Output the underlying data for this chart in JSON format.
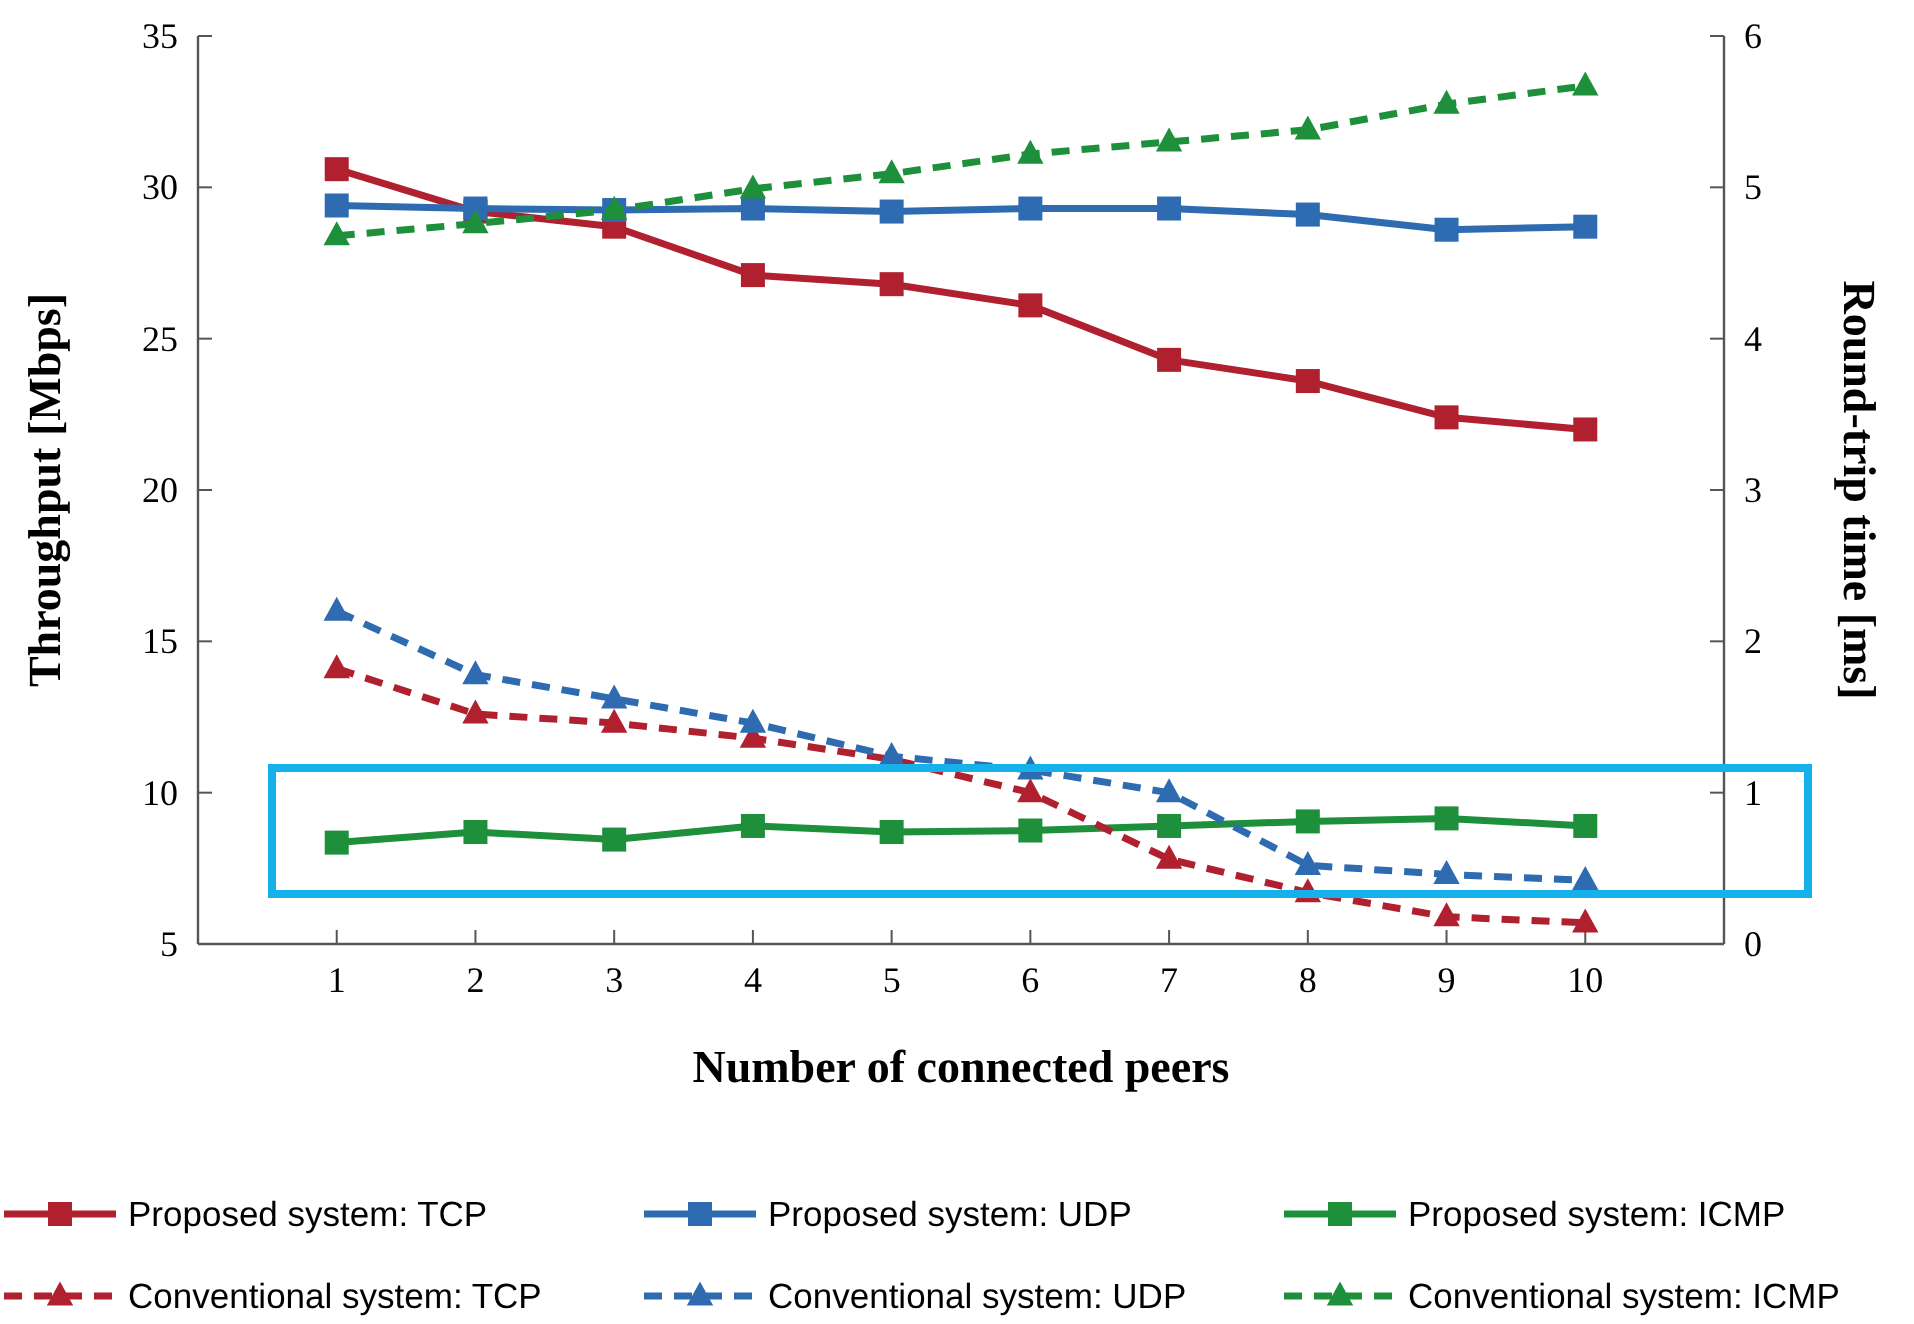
{
  "chart_data": {
    "type": "line",
    "xlabel": "Number of connected peers",
    "ylabel": "Throughput [Mbps]",
    "y2label": "Round-trip time [ms]",
    "x": [
      1,
      2,
      3,
      4,
      5,
      6,
      7,
      8,
      9,
      10
    ],
    "xlim": [
      0,
      11
    ],
    "xticks": [
      1,
      2,
      3,
      4,
      5,
      6,
      7,
      8,
      9,
      10
    ],
    "ylim": [
      5,
      35
    ],
    "yticks": [
      5,
      10,
      15,
      20,
      25,
      30,
      35
    ],
    "y2lim": [
      0,
      6
    ],
    "y2ticks": [
      0,
      1,
      2,
      3,
      4,
      5,
      6
    ],
    "grid": false,
    "legend": "bottom",
    "series": [
      {
        "name": "Proposed system: TCP",
        "color": "#b0202e",
        "marker": "square",
        "line_style": "solid",
        "values": [
          30.6,
          29.2,
          28.7,
          27.1,
          26.8,
          26.1,
          24.3,
          23.6,
          22.4,
          22.0
        ]
      },
      {
        "name": "Proposed system: UDP",
        "color": "#2f6bb0",
        "marker": "square",
        "line_style": "solid",
        "values": [
          29.4,
          29.3,
          29.25,
          29.3,
          29.2,
          29.3,
          29.3,
          29.1,
          28.6,
          28.7
        ]
      },
      {
        "name": "Proposed system: ICMP",
        "color": "#1e8f3a",
        "marker": "square",
        "line_style": "solid",
        "axis": "y2",
        "values": [
          0.67,
          0.74,
          0.69,
          0.78,
          0.74,
          0.75,
          0.78,
          0.81,
          0.83,
          0.78
        ]
      },
      {
        "name": "Conventional system: TCP",
        "color": "#b0202e",
        "marker": "triangle",
        "line_style": "dashed",
        "values": [
          14.1,
          12.6,
          12.3,
          11.8,
          11.1,
          10.0,
          7.8,
          6.7,
          5.9,
          5.7
        ]
      },
      {
        "name": "Conventional system: UDP",
        "color": "#2f6bb0",
        "marker": "triangle",
        "line_style": "dashed",
        "values": [
          16.0,
          13.9,
          13.1,
          12.3,
          11.2,
          10.75,
          10.0,
          7.6,
          7.3,
          7.1
        ]
      },
      {
        "name": "Conventional system: ICMP",
        "color": "#1e8f3a",
        "marker": "triangle",
        "line_style": "dashed",
        "axis": "y2",
        "values": [
          4.68,
          4.76,
          4.85,
          4.99,
          5.09,
          5.22,
          5.3,
          5.38,
          5.55,
          5.67
        ]
      }
    ]
  }
}
